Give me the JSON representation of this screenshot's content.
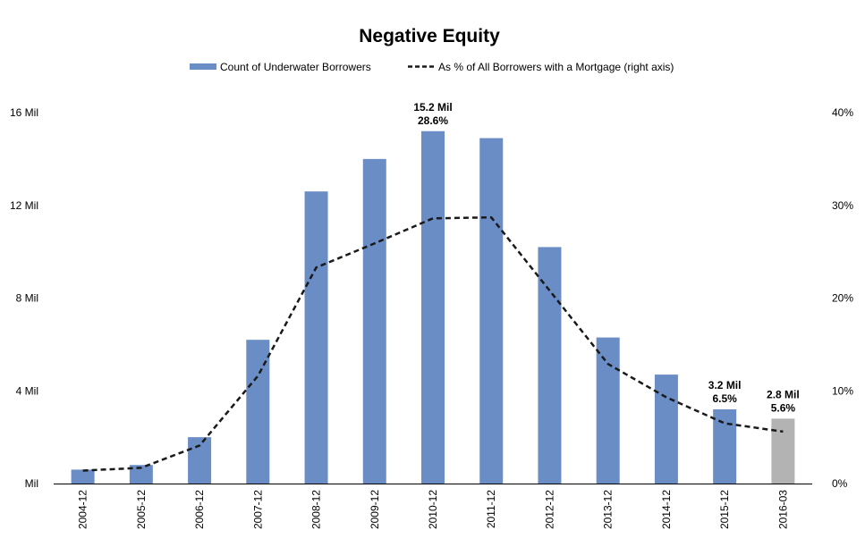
{
  "chart_data": {
    "type": "bar",
    "title": "Negative Equity",
    "categories": [
      "2004-12",
      "2005-12",
      "2006-12",
      "2007-12",
      "2008-12",
      "2009-12",
      "2010-12",
      "2011-12",
      "2012-12",
      "2013-12",
      "2014-12",
      "2015-12",
      "2016-03"
    ],
    "series": [
      {
        "name": "Count of Underwater Borrowers",
        "type": "bar",
        "axis": "left",
        "color": "#6a8dc6",
        "highlight_color": "#b3b3b3",
        "highlight_index": 12,
        "values": [
          0.6,
          0.8,
          2.0,
          6.2,
          12.6,
          14.0,
          15.2,
          14.9,
          10.2,
          6.3,
          4.7,
          3.2,
          2.8
        ]
      },
      {
        "name": "As % of All Borrowers with a Mortgage (right axis)",
        "type": "line",
        "axis": "right",
        "style": "dashed",
        "color": "#1a1a1a",
        "values": [
          1.4,
          1.7,
          4.1,
          11.6,
          23.3,
          25.9,
          28.6,
          28.7,
          20.8,
          12.9,
          9.3,
          6.5,
          5.6
        ]
      }
    ],
    "y_left": {
      "min": 0,
      "max": 16,
      "ticks": [
        0,
        4,
        8,
        12,
        16
      ],
      "tick_labels": [
        "Mil",
        "4 Mil",
        "8 Mil",
        "12 Mil",
        "16 Mil"
      ]
    },
    "y_right": {
      "min": 0,
      "max": 40,
      "ticks": [
        0,
        10,
        20,
        30,
        40
      ],
      "tick_labels": [
        "0%",
        "10%",
        "20%",
        "30%",
        "40%"
      ]
    },
    "annotations": [
      {
        "index": 6,
        "lines": [
          "15.2 Mil",
          "28.6%"
        ]
      },
      {
        "index": 11,
        "lines": [
          "3.2 Mil",
          "6.5%"
        ]
      },
      {
        "index": 12,
        "lines": [
          "2.8 Mil",
          "5.6%"
        ]
      }
    ],
    "legend": "top-center",
    "grid": false
  }
}
